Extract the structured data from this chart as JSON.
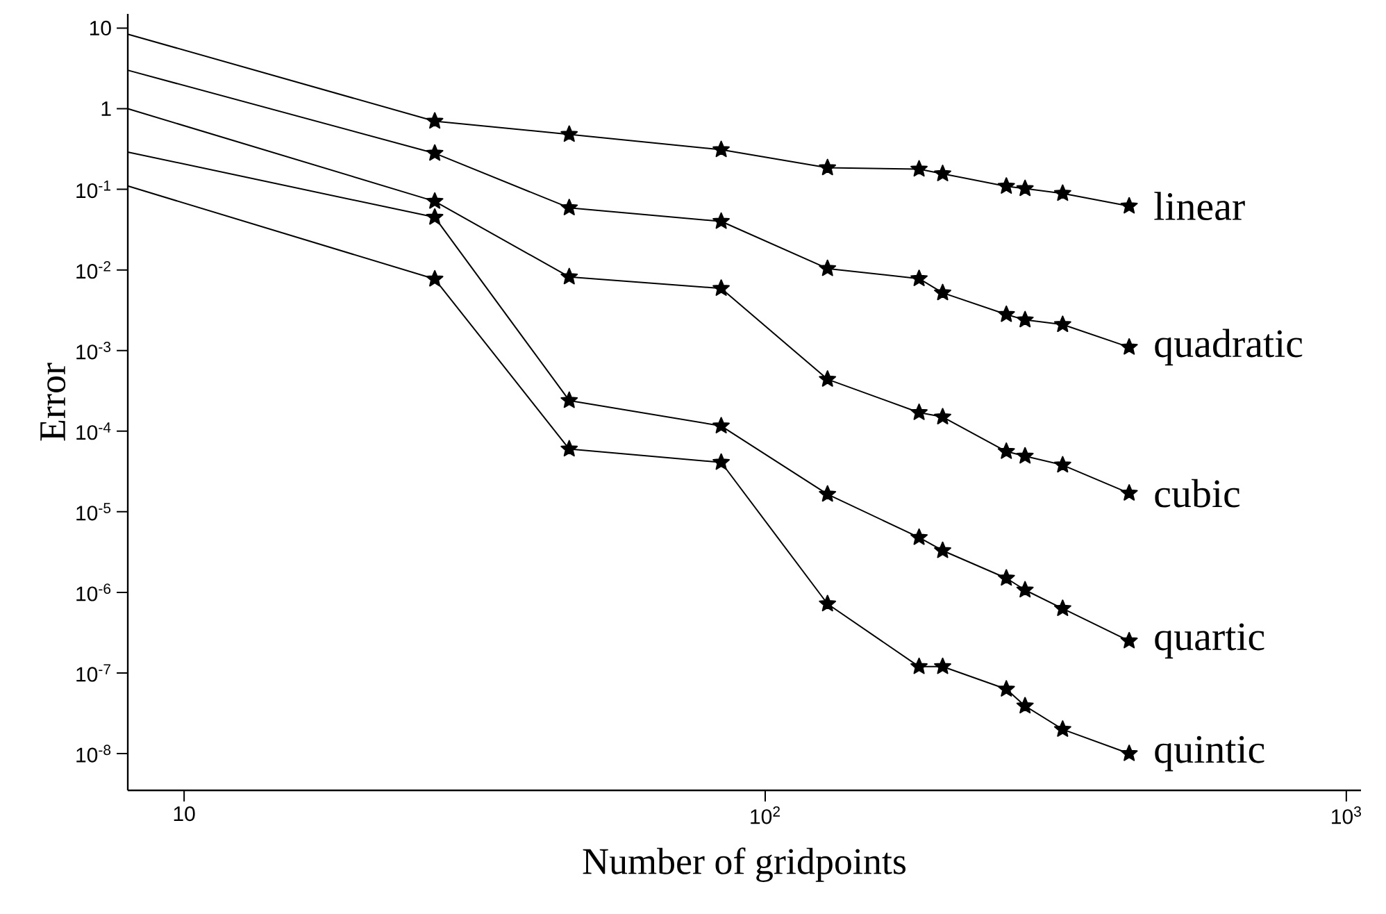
{
  "chart_data": {
    "type": "line",
    "xlabel": "Number of gridpoints",
    "ylabel": "Error",
    "log": "xy",
    "marker": "star",
    "line_style": "solid",
    "grid": false,
    "legend": false,
    "xlim": [
      8,
      1060
    ],
    "ylim": [
      3.5e-09,
      15
    ],
    "xticks": [
      10,
      {
        "value": 100,
        "label": "10$^{2}$"
      },
      {
        "value": 1000,
        "label": "10$^{3}$"
      }
    ],
    "yticks": [
      {
        "value": 1e-08,
        "label": "10$^{-8}$"
      },
      {
        "value": 1e-07,
        "label": "10$^{-7}$"
      },
      {
        "value": 1e-06,
        "label": "10$^{-6}$"
      },
      {
        "value": 1e-05,
        "label": "10$^{-5}$"
      },
      {
        "value": 0.0001,
        "label": "10$^{-4}$"
      },
      {
        "value": 0.001,
        "label": "10$^{-3}$"
      },
      {
        "value": 0.01,
        "label": "10$^{-2}$"
      },
      {
        "value": 0.1,
        "label": "10$^{-1}$"
      },
      1,
      10
    ],
    "x": [
      8,
      27,
      46,
      84,
      128,
      184,
      202,
      260,
      280,
      325,
      423
    ],
    "series": [
      {
        "name": "linear",
        "color": "#000000",
        "values": [
          8.4,
          0.7,
          0.48,
          0.31,
          0.185,
          0.178,
          0.156,
          0.109,
          0.102,
          0.089,
          0.062
        ]
      },
      {
        "name": "quadratic",
        "color": "#000000",
        "values": [
          3.0,
          0.28,
          0.059,
          0.04,
          0.0104,
          0.0078,
          0.0052,
          0.0028,
          0.0024,
          0.0021,
          0.0011
        ]
      },
      {
        "name": "cubic",
        "color": "#000000",
        "values": [
          1.0,
          0.071,
          0.0082,
          0.0059,
          0.00044,
          0.00017,
          0.00015,
          5.6e-05,
          4.9e-05,
          3.8e-05,
          1.7e-05
        ]
      },
      {
        "name": "quartic",
        "color": "#000000",
        "values": [
          0.29,
          0.045,
          0.00024,
          0.000116,
          1.65e-05,
          4.8e-06,
          3.3e-06,
          1.5e-06,
          1.07e-06,
          6.3e-07,
          2.5e-07
        ]
      },
      {
        "name": "quintic",
        "color": "#000000",
        "values": [
          0.11,
          0.0077,
          6e-05,
          4.1e-05,
          7.2e-07,
          1.2e-07,
          1.2e-07,
          6.3e-08,
          3.9e-08,
          2e-08,
          1e-08
        ]
      }
    ]
  }
}
